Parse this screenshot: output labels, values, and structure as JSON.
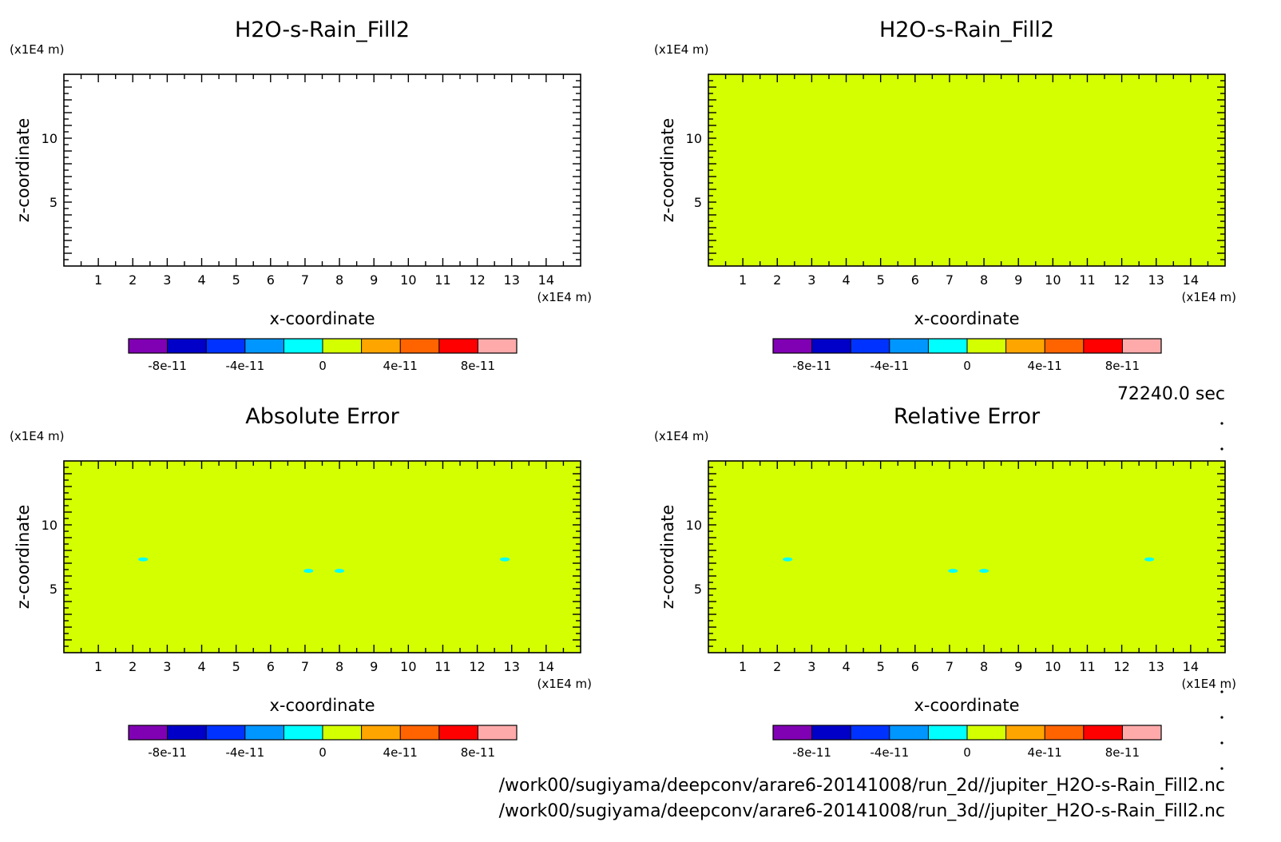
{
  "time_label": "72240.0 sec",
  "footer": {
    "line1": "/work00/sugiyama/deepconv/arare6-20141008/run_2d//jupiter_H2O-s-Rain_Fill2.nc",
    "line2": "/work00/sugiyama/deepconv/arare6-20141008/run_3d//jupiter_H2O-s-Rain_Fill2.nc"
  },
  "colors": {
    "field": "#d4ff00",
    "anomaly": "#00ffff",
    "frame": "#000000"
  },
  "chart_data": [
    {
      "type": "heatmap",
      "title": "H2O-s-Rain_Fill2",
      "xlabel": "x-coordinate",
      "ylabel": "z-coordinate",
      "x_unit": "(x1E4 m)",
      "y_unit": "(x1E4 m)",
      "xlim": [
        0,
        15
      ],
      "ylim": [
        0,
        15
      ],
      "x_ticks": [
        1,
        2,
        3,
        4,
        5,
        6,
        7,
        8,
        9,
        10,
        11,
        12,
        13,
        14
      ],
      "y_ticks": [
        5,
        10
      ],
      "fill": "none",
      "spots": [],
      "colorbar": {
        "colors": [
          "#8000b4",
          "#0000c8",
          "#0032ff",
          "#0096ff",
          "#00ffff",
          "#d4ff00",
          "#ffa500",
          "#ff6400",
          "#ff0000",
          "#ffaaaa"
        ],
        "labels": [
          "-8e-11",
          "-4e-11",
          "0",
          "4e-11",
          "8e-11"
        ]
      }
    },
    {
      "type": "heatmap",
      "title": "H2O-s-Rain_Fill2",
      "xlabel": "x-coordinate",
      "ylabel": "z-coordinate",
      "x_unit": "(x1E4 m)",
      "y_unit": "(x1E4 m)",
      "xlim": [
        0,
        15
      ],
      "ylim": [
        0,
        15
      ],
      "x_ticks": [
        1,
        2,
        3,
        4,
        5,
        6,
        7,
        8,
        9,
        10,
        11,
        12,
        13,
        14
      ],
      "y_ticks": [
        5,
        10
      ],
      "fill": "#d4ff00",
      "spots": [],
      "colorbar": {
        "colors": [
          "#8000b4",
          "#0000c8",
          "#0032ff",
          "#0096ff",
          "#00ffff",
          "#d4ff00",
          "#ffa500",
          "#ff6400",
          "#ff0000",
          "#ffaaaa"
        ],
        "labels": [
          "-8e-11",
          "-4e-11",
          "0",
          "4e-11",
          "8e-11"
        ]
      }
    },
    {
      "type": "heatmap",
      "title": "Absolute Error",
      "xlabel": "x-coordinate",
      "ylabel": "z-coordinate",
      "x_unit": "(x1E4 m)",
      "y_unit": "(x1E4 m)",
      "xlim": [
        0,
        15
      ],
      "ylim": [
        0,
        15
      ],
      "x_ticks": [
        1,
        2,
        3,
        4,
        5,
        6,
        7,
        8,
        9,
        10,
        11,
        12,
        13,
        14
      ],
      "y_ticks": [
        5,
        10
      ],
      "fill": "#d4ff00",
      "spots": [
        {
          "x": 2.3,
          "z": 7.3
        },
        {
          "x": 7.1,
          "z": 6.4
        },
        {
          "x": 8.0,
          "z": 6.4
        },
        {
          "x": 12.8,
          "z": 7.3
        }
      ],
      "colorbar": {
        "colors": [
          "#8000b4",
          "#0000c8",
          "#0032ff",
          "#0096ff",
          "#00ffff",
          "#d4ff00",
          "#ffa500",
          "#ff6400",
          "#ff0000",
          "#ffaaaa"
        ],
        "labels": [
          "-8e-11",
          "-4e-11",
          "0",
          "4e-11",
          "8e-11"
        ]
      }
    },
    {
      "type": "heatmap",
      "title": "Relative Error",
      "xlabel": "x-coordinate",
      "ylabel": "z-coordinate",
      "x_unit": "(x1E4 m)",
      "y_unit": "(x1E4 m)",
      "xlim": [
        0,
        15
      ],
      "ylim": [
        0,
        15
      ],
      "x_ticks": [
        1,
        2,
        3,
        4,
        5,
        6,
        7,
        8,
        9,
        10,
        11,
        12,
        13,
        14
      ],
      "y_ticks": [
        5,
        10
      ],
      "fill": "#d4ff00",
      "spots": [
        {
          "x": 2.3,
          "z": 7.3
        },
        {
          "x": 7.1,
          "z": 6.4
        },
        {
          "x": 8.0,
          "z": 6.4
        },
        {
          "x": 12.8,
          "z": 7.3
        }
      ],
      "colorbar": {
        "colors": [
          "#8000b4",
          "#0000c8",
          "#0032ff",
          "#0096ff",
          "#00ffff",
          "#d4ff00",
          "#ffa500",
          "#ff6400",
          "#ff0000",
          "#ffaaaa"
        ],
        "labels": [
          "-8e-11",
          "-4e-11",
          "0",
          "4e-11",
          "8e-11"
        ]
      }
    }
  ]
}
